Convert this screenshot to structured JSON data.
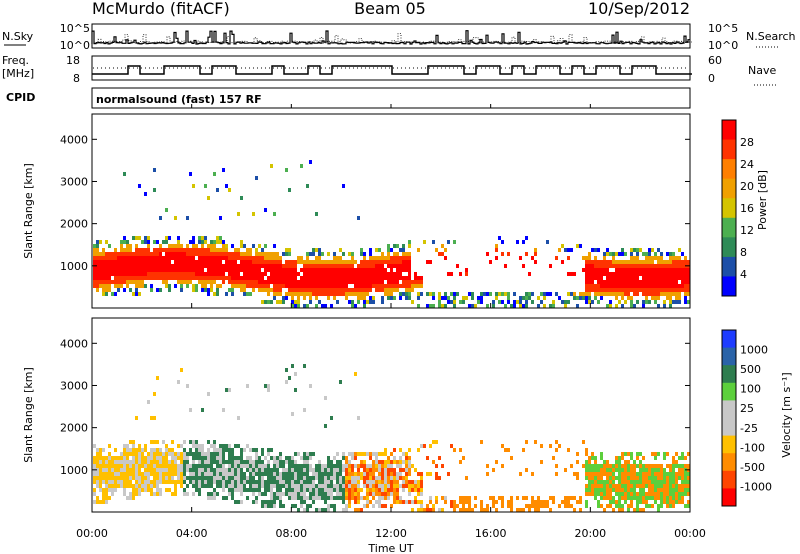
{
  "header": {
    "station": "McMurdo (fitACF)",
    "beam": "Beam 05",
    "date": "10/Sep/2012"
  },
  "panel_labels": {
    "nsky": "N.Sky",
    "nsearch": "N.Search",
    "freq_label": "Freq.",
    "freq_unit": "[MHz]",
    "nave": "Nave",
    "cpid": "CPID",
    "cpid_value": "normalsound (fast) 157 RF"
  },
  "noise_axis": {
    "left_ticks": [
      "10^5",
      "10^0"
    ],
    "right_ticks": [
      "10^5",
      "10^0"
    ]
  },
  "freq_axis": {
    "left_ticks": [
      "18",
      "8"
    ],
    "right_ticks": [
      "60",
      "0"
    ]
  },
  "colors": {
    "power_scale": [
      "#0000ff",
      "#1c4fa8",
      "#2e8b57",
      "#4caf50",
      "#d4c400",
      "#f0a000",
      "#ff7f00",
      "#ff3300",
      "#ff0000"
    ],
    "velocity_scale": [
      "#1e3cff",
      "#2a63a8",
      "#2e7d4f",
      "#5ccf3c",
      "#c8c8c8",
      "#c8c8c8",
      "#ffc000",
      "#ff8c00",
      "#ff4500",
      "#ff0000"
    ]
  },
  "chart_data": [
    {
      "type": "line",
      "title": "McMurdo (fitACF) Beam 05 10/Sep/2012",
      "xlabel": "Time UT",
      "series": [
        {
          "name": "N.Sky",
          "values": []
        },
        {
          "name": "N.Search",
          "values": []
        }
      ],
      "x_ticks": [
        "00:00",
        "04:00",
        "08:00",
        "12:00",
        "16:00",
        "20:00",
        "00:00"
      ],
      "y_ticks_left": [
        "10^5",
        "10^0"
      ],
      "y_ticks_right": [
        "10^5",
        "10^0"
      ]
    },
    {
      "type": "line",
      "series": [
        {
          "name": "Freq.",
          "unit": "[MHz]"
        },
        {
          "name": "Nave"
        }
      ],
      "y_ticks_left": [
        "18",
        "8"
      ],
      "y_ticks_right": [
        "60",
        "0"
      ]
    },
    {
      "type": "heatmap",
      "ylabel": "Slant Range [km]",
      "xlabel": "Time UT",
      "y_ticks": [
        "1000",
        "2000",
        "3000",
        "4000"
      ],
      "x_ticks": [
        "00:00",
        "04:00",
        "08:00",
        "12:00",
        "16:00",
        "20:00",
        "00:00"
      ],
      "colorbar": {
        "label": "Power [dB]",
        "ticks": [
          "28",
          "24",
          "20",
          "16",
          "12",
          "8",
          "4"
        ]
      }
    },
    {
      "type": "heatmap",
      "ylabel": "Slant Range [km]",
      "xlabel": "Time UT",
      "y_ticks": [
        "1000",
        "2000",
        "3000",
        "4000"
      ],
      "x_ticks": [
        "00:00",
        "04:00",
        "08:00",
        "12:00",
        "16:00",
        "20:00",
        "00:00"
      ],
      "colorbar": {
        "label": "Velocity [m s⁻¹]",
        "ticks": [
          "1000",
          "500",
          "100",
          "25",
          "-25",
          "-100",
          "-500",
          "-1000"
        ]
      }
    }
  ]
}
